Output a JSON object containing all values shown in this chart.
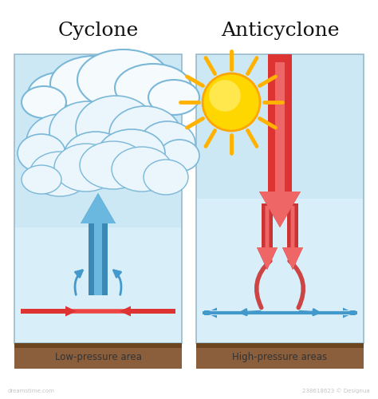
{
  "title_left": "Cyclone",
  "title_right": "Anticyclone",
  "label_left": "Low-pressure area",
  "label_right": "High-pressure areas",
  "bg_color": "#ffffff",
  "panel_sky": "#d6ecf8",
  "panel_sky2": "#e8f4fb",
  "ground_color": "#8B5E3C",
  "ground_dark": "#5a3a1a",
  "arrow_blue": "#4499cc",
  "arrow_blue_dark": "#2277aa",
  "arrow_red": "#dd3333",
  "sun_yellow": "#FFD700",
  "sun_orange": "#FFA500",
  "sun_ray": "#FFB300",
  "cloud_fill": "#eaf5fc",
  "cloud_fill2": "#f5fafd",
  "cloud_outline": "#7bb8d8",
  "panel_border": "#99bbcc"
}
